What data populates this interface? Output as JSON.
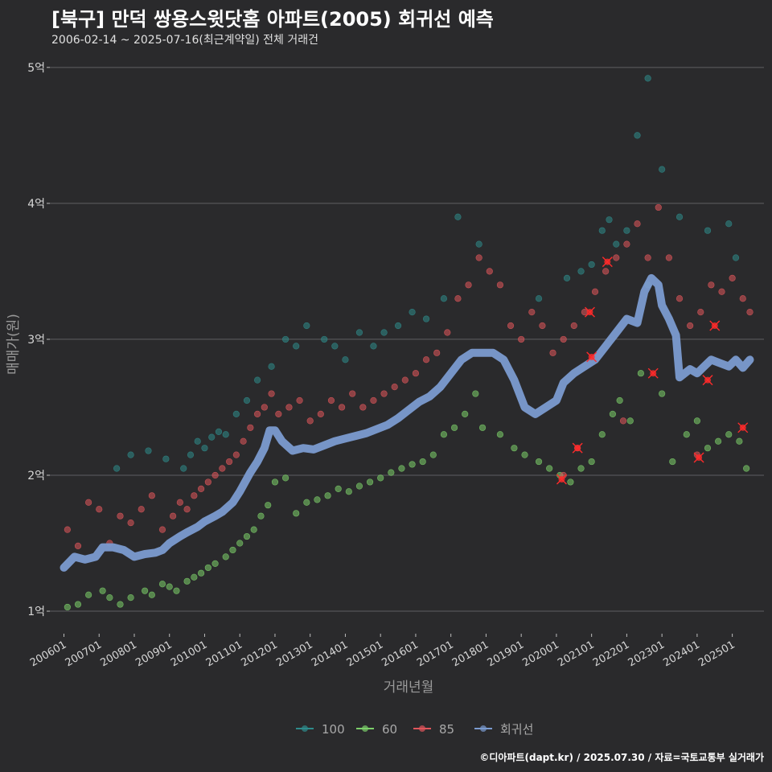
{
  "title": "[북구] 만덕 쌍용스윗닷홈 아파트(2005) 회귀선 예측",
  "subtitle": "2006-02-14 ~ 2025-07-16(최근계약일) 전체 거래건",
  "caption": "©디아파트(dapt.kr) / 2025.07.30 / 자료=국토교통부 실거래가",
  "chart_data": {
    "type": "scatter",
    "xlabel": "거래년월",
    "ylabel": "매매가(원)",
    "x_tick_labels": [
      "200601",
      "200701",
      "200801",
      "200901",
      "201001",
      "201101",
      "201201",
      "201301",
      "201401",
      "201501",
      "201601",
      "201701",
      "201801",
      "201901",
      "202001",
      "202101",
      "202201",
      "202301",
      "202401",
      "202501"
    ],
    "y_ticks": [
      1,
      2,
      3,
      4,
      5
    ],
    "y_tick_labels": [
      "1억",
      "2억",
      "3억",
      "4억",
      "5억"
    ],
    "ylim": [
      0.87,
      5.07
    ],
    "xlim": [
      2005.6,
      2025.9
    ],
    "grid": "horizontal",
    "legend_position": "bottom",
    "colors": {
      "100": "#2e8b8b",
      "60": "#7ccf6a",
      "85": "#e0565b",
      "회귀선": "#7b9bd0",
      "highlight": "#ff2a2a"
    },
    "series": [
      {
        "name": "100",
        "points": [
          [
            2007.5,
            2.05
          ],
          [
            2007.9,
            2.15
          ],
          [
            2008.4,
            2.18
          ],
          [
            2008.9,
            2.12
          ],
          [
            2009.4,
            2.05
          ],
          [
            2009.6,
            2.15
          ],
          [
            2009.8,
            2.25
          ],
          [
            2010.0,
            2.2
          ],
          [
            2010.2,
            2.28
          ],
          [
            2010.4,
            2.32
          ],
          [
            2010.6,
            2.3
          ],
          [
            2010.9,
            2.45
          ],
          [
            2011.2,
            2.55
          ],
          [
            2011.5,
            2.7
          ],
          [
            2011.9,
            2.8
          ],
          [
            2012.3,
            3.0
          ],
          [
            2012.6,
            2.95
          ],
          [
            2012.9,
            3.1
          ],
          [
            2013.4,
            3.0
          ],
          [
            2013.7,
            2.95
          ],
          [
            2014.0,
            2.85
          ],
          [
            2014.4,
            3.05
          ],
          [
            2014.8,
            2.95
          ],
          [
            2015.1,
            3.05
          ],
          [
            2015.5,
            3.1
          ],
          [
            2015.9,
            3.2
          ],
          [
            2016.3,
            3.15
          ],
          [
            2016.8,
            3.3
          ],
          [
            2017.2,
            3.9
          ],
          [
            2017.8,
            3.7
          ],
          [
            2019.5,
            3.3
          ],
          [
            2020.3,
            3.45
          ],
          [
            2020.7,
            3.5
          ],
          [
            2021.0,
            3.55
          ],
          [
            2021.3,
            3.8
          ],
          [
            2021.5,
            3.88
          ],
          [
            2021.7,
            3.7
          ],
          [
            2022.0,
            3.8
          ],
          [
            2022.3,
            4.5
          ],
          [
            2022.6,
            4.92
          ],
          [
            2023.0,
            4.25
          ],
          [
            2023.5,
            3.9
          ],
          [
            2024.3,
            3.8
          ],
          [
            2024.9,
            3.85
          ],
          [
            2025.1,
            3.6
          ]
        ]
      },
      {
        "name": "60",
        "points": [
          [
            2006.1,
            1.03
          ],
          [
            2006.4,
            1.05
          ],
          [
            2006.7,
            1.12
          ],
          [
            2007.1,
            1.15
          ],
          [
            2007.3,
            1.1
          ],
          [
            2007.6,
            1.05
          ],
          [
            2007.9,
            1.1
          ],
          [
            2008.3,
            1.15
          ],
          [
            2008.5,
            1.12
          ],
          [
            2008.8,
            1.2
          ],
          [
            2009.0,
            1.18
          ],
          [
            2009.2,
            1.15
          ],
          [
            2009.5,
            1.22
          ],
          [
            2009.7,
            1.25
          ],
          [
            2009.9,
            1.28
          ],
          [
            2010.1,
            1.32
          ],
          [
            2010.3,
            1.35
          ],
          [
            2010.6,
            1.4
          ],
          [
            2010.8,
            1.45
          ],
          [
            2011.0,
            1.5
          ],
          [
            2011.2,
            1.55
          ],
          [
            2011.4,
            1.6
          ],
          [
            2011.6,
            1.7
          ],
          [
            2011.8,
            1.78
          ],
          [
            2012.0,
            1.95
          ],
          [
            2012.3,
            1.98
          ],
          [
            2012.6,
            1.72
          ],
          [
            2012.9,
            1.8
          ],
          [
            2013.2,
            1.82
          ],
          [
            2013.5,
            1.85
          ],
          [
            2013.8,
            1.9
          ],
          [
            2014.1,
            1.88
          ],
          [
            2014.4,
            1.92
          ],
          [
            2014.7,
            1.95
          ],
          [
            2015.0,
            1.98
          ],
          [
            2015.3,
            2.02
          ],
          [
            2015.6,
            2.05
          ],
          [
            2015.9,
            2.08
          ],
          [
            2016.2,
            2.1
          ],
          [
            2016.5,
            2.15
          ],
          [
            2016.8,
            2.3
          ],
          [
            2017.1,
            2.35
          ],
          [
            2017.4,
            2.45
          ],
          [
            2017.7,
            2.6
          ],
          [
            2017.9,
            2.35
          ],
          [
            2018.4,
            2.3
          ],
          [
            2018.8,
            2.2
          ],
          [
            2019.1,
            2.15
          ],
          [
            2019.5,
            2.1
          ],
          [
            2019.8,
            2.05
          ],
          [
            2020.1,
            2.0
          ],
          [
            2020.4,
            1.95
          ],
          [
            2020.7,
            2.05
          ],
          [
            2021.0,
            2.1
          ],
          [
            2021.3,
            2.3
          ],
          [
            2021.6,
            2.45
          ],
          [
            2021.8,
            2.55
          ],
          [
            2022.1,
            2.4
          ],
          [
            2022.4,
            2.75
          ],
          [
            2022.6,
            3.4
          ],
          [
            2023.0,
            2.6
          ],
          [
            2023.3,
            2.1
          ],
          [
            2023.7,
            2.3
          ],
          [
            2024.0,
            2.4
          ],
          [
            2024.3,
            2.2
          ],
          [
            2024.6,
            2.25
          ],
          [
            2024.9,
            2.3
          ],
          [
            2025.2,
            2.25
          ],
          [
            2025.4,
            2.05
          ]
        ]
      },
      {
        "name": "85",
        "points": [
          [
            2006.1,
            1.6
          ],
          [
            2006.4,
            1.48
          ],
          [
            2006.7,
            1.8
          ],
          [
            2007.0,
            1.75
          ],
          [
            2007.3,
            1.5
          ],
          [
            2007.6,
            1.7
          ],
          [
            2007.9,
            1.65
          ],
          [
            2008.2,
            1.75
          ],
          [
            2008.5,
            1.85
          ],
          [
            2008.8,
            1.6
          ],
          [
            2009.1,
            1.7
          ],
          [
            2009.3,
            1.8
          ],
          [
            2009.5,
            1.75
          ],
          [
            2009.7,
            1.85
          ],
          [
            2009.9,
            1.9
          ],
          [
            2010.1,
            1.95
          ],
          [
            2010.3,
            2.0
          ],
          [
            2010.5,
            2.05
          ],
          [
            2010.7,
            2.1
          ],
          [
            2010.9,
            2.15
          ],
          [
            2011.1,
            2.25
          ],
          [
            2011.3,
            2.35
          ],
          [
            2011.5,
            2.45
          ],
          [
            2011.7,
            2.5
          ],
          [
            2011.9,
            2.6
          ],
          [
            2012.1,
            2.45
          ],
          [
            2012.4,
            2.5
          ],
          [
            2012.7,
            2.55
          ],
          [
            2013.0,
            2.4
          ],
          [
            2013.3,
            2.45
          ],
          [
            2013.6,
            2.55
          ],
          [
            2013.9,
            2.5
          ],
          [
            2014.2,
            2.6
          ],
          [
            2014.5,
            2.5
          ],
          [
            2014.8,
            2.55
          ],
          [
            2015.1,
            2.6
          ],
          [
            2015.4,
            2.65
          ],
          [
            2015.7,
            2.7
          ],
          [
            2016.0,
            2.75
          ],
          [
            2016.3,
            2.85
          ],
          [
            2016.6,
            2.9
          ],
          [
            2016.9,
            3.05
          ],
          [
            2017.2,
            3.3
          ],
          [
            2017.5,
            3.4
          ],
          [
            2017.8,
            3.6
          ],
          [
            2018.1,
            3.5
          ],
          [
            2018.4,
            3.4
          ],
          [
            2018.7,
            3.1
          ],
          [
            2019.0,
            3.0
          ],
          [
            2019.3,
            3.2
          ],
          [
            2019.6,
            3.1
          ],
          [
            2019.9,
            2.9
          ],
          [
            2020.2,
            3.0
          ],
          [
            2020.5,
            3.1
          ],
          [
            2020.8,
            3.2
          ],
          [
            2021.1,
            3.35
          ],
          [
            2021.4,
            3.5
          ],
          [
            2021.7,
            3.6
          ],
          [
            2022.0,
            3.7
          ],
          [
            2022.3,
            3.85
          ],
          [
            2022.6,
            3.6
          ],
          [
            2022.9,
            3.97
          ],
          [
            2023.2,
            3.6
          ],
          [
            2023.5,
            3.3
          ],
          [
            2023.8,
            3.1
          ],
          [
            2024.1,
            3.2
          ],
          [
            2024.4,
            3.4
          ],
          [
            2024.7,
            3.35
          ],
          [
            2025.0,
            3.45
          ],
          [
            2025.3,
            3.3
          ],
          [
            2025.5,
            3.2
          ],
          [
            2020.2,
            2.0
          ],
          [
            2020.6,
            2.2
          ],
          [
            2021.9,
            2.4
          ],
          [
            2024.0,
            2.15
          ]
        ]
      },
      {
        "name": "highlight",
        "points": [
          [
            2020.15,
            1.97
          ],
          [
            2020.6,
            2.2
          ],
          [
            2020.95,
            3.2
          ],
          [
            2021.0,
            2.87
          ],
          [
            2021.45,
            3.57
          ],
          [
            2022.75,
            2.75
          ],
          [
            2024.05,
            2.13
          ],
          [
            2024.3,
            2.7
          ],
          [
            2024.5,
            3.1
          ],
          [
            2025.3,
            2.35
          ]
        ]
      },
      {
        "name": "회귀선",
        "line": [
          [
            2006.0,
            1.32
          ],
          [
            2006.3,
            1.4
          ],
          [
            2006.6,
            1.38
          ],
          [
            2006.9,
            1.4
          ],
          [
            2007.1,
            1.47
          ],
          [
            2007.4,
            1.47
          ],
          [
            2007.7,
            1.45
          ],
          [
            2008.0,
            1.4
          ],
          [
            2008.3,
            1.42
          ],
          [
            2008.6,
            1.43
          ],
          [
            2008.8,
            1.45
          ],
          [
            2009.0,
            1.5
          ],
          [
            2009.3,
            1.55
          ],
          [
            2009.5,
            1.58
          ],
          [
            2009.8,
            1.62
          ],
          [
            2010.0,
            1.66
          ],
          [
            2010.3,
            1.7
          ],
          [
            2010.5,
            1.73
          ],
          [
            2010.8,
            1.8
          ],
          [
            2011.0,
            1.88
          ],
          [
            2011.3,
            2.02
          ],
          [
            2011.5,
            2.1
          ],
          [
            2011.7,
            2.2
          ],
          [
            2011.85,
            2.33
          ],
          [
            2012.0,
            2.33
          ],
          [
            2012.2,
            2.25
          ],
          [
            2012.5,
            2.18
          ],
          [
            2012.8,
            2.2
          ],
          [
            2013.1,
            2.19
          ],
          [
            2013.4,
            2.22
          ],
          [
            2013.7,
            2.25
          ],
          [
            2014.0,
            2.27
          ],
          [
            2014.3,
            2.29
          ],
          [
            2014.6,
            2.31
          ],
          [
            2014.9,
            2.34
          ],
          [
            2015.2,
            2.37
          ],
          [
            2015.5,
            2.42
          ],
          [
            2015.8,
            2.48
          ],
          [
            2016.1,
            2.54
          ],
          [
            2016.4,
            2.58
          ],
          [
            2016.7,
            2.65
          ],
          [
            2017.0,
            2.75
          ],
          [
            2017.3,
            2.85
          ],
          [
            2017.6,
            2.9
          ],
          [
            2017.9,
            2.9
          ],
          [
            2018.2,
            2.9
          ],
          [
            2018.5,
            2.85
          ],
          [
            2018.8,
            2.7
          ],
          [
            2019.1,
            2.5
          ],
          [
            2019.4,
            2.45
          ],
          [
            2019.7,
            2.5
          ],
          [
            2020.0,
            2.55
          ],
          [
            2020.2,
            2.68
          ],
          [
            2020.5,
            2.75
          ],
          [
            2020.8,
            2.8
          ],
          [
            2021.1,
            2.85
          ],
          [
            2021.4,
            2.95
          ],
          [
            2021.7,
            3.05
          ],
          [
            2022.0,
            3.15
          ],
          [
            2022.3,
            3.12
          ],
          [
            2022.5,
            3.35
          ],
          [
            2022.7,
            3.45
          ],
          [
            2022.9,
            3.4
          ],
          [
            2023.0,
            3.25
          ],
          [
            2023.2,
            3.15
          ],
          [
            2023.4,
            3.03
          ],
          [
            2023.5,
            2.72
          ],
          [
            2023.8,
            2.78
          ],
          [
            2024.0,
            2.75
          ],
          [
            2024.2,
            2.8
          ],
          [
            2024.4,
            2.85
          ],
          [
            2024.7,
            2.82
          ],
          [
            2024.9,
            2.8
          ],
          [
            2025.1,
            2.85
          ],
          [
            2025.3,
            2.79
          ],
          [
            2025.5,
            2.85
          ]
        ]
      }
    ]
  }
}
